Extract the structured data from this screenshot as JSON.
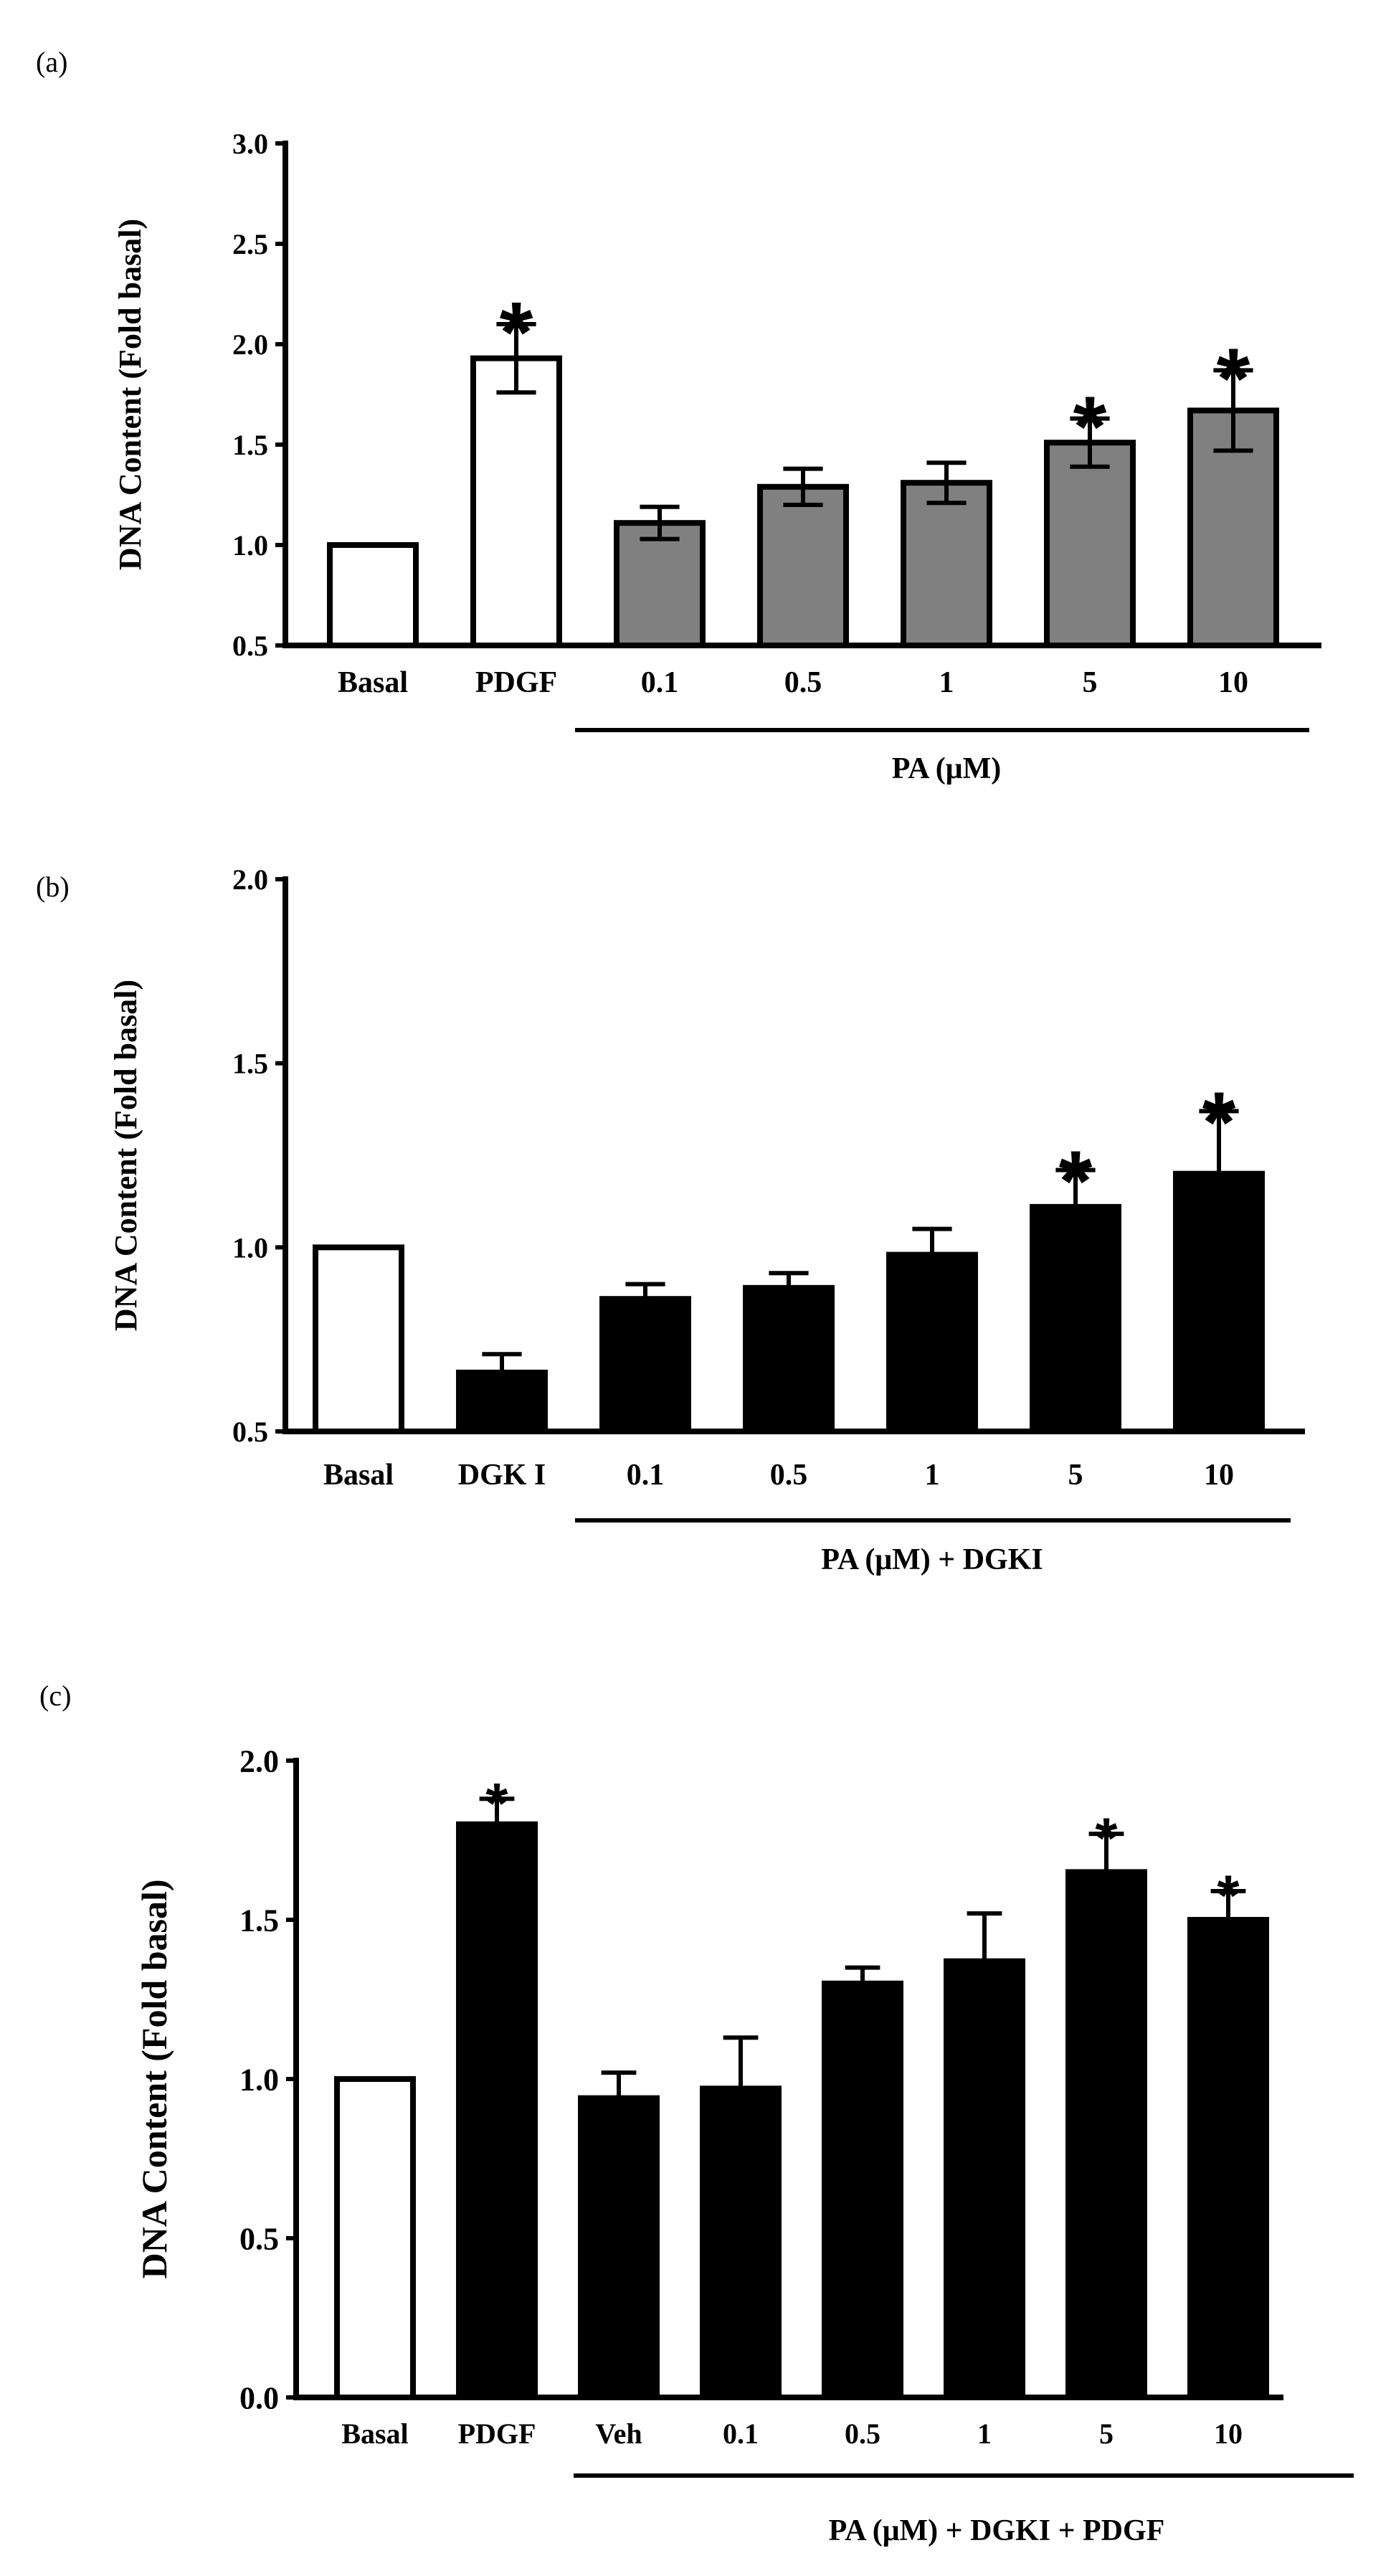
{
  "chart_data": [
    {
      "panel": "(a)",
      "type": "bar",
      "categories": [
        "Basal",
        "PDGF",
        "0.1",
        "0.5",
        "1",
        "5",
        "10"
      ],
      "values": [
        1.0,
        1.93,
        1.11,
        1.29,
        1.31,
        1.51,
        1.67
      ],
      "errors": [
        0,
        0.17,
        0.08,
        0.09,
        0.1,
        0.12,
        0.2
      ],
      "colors": [
        "#ffffff",
        "#ffffff",
        "#808080",
        "#808080",
        "#808080",
        "#808080",
        "#808080"
      ],
      "significant": [
        false,
        true,
        false,
        false,
        false,
        true,
        true
      ],
      "sig_marker": "*",
      "ylim": [
        0.5,
        3.0
      ],
      "yticks": [
        "0.5",
        "1.0",
        "1.5",
        "2.0",
        "2.5",
        "3.0"
      ],
      "ylabel": "DNA Content (Fold basal)",
      "group_label": "PA (μM)",
      "group_start_index": 2,
      "group_end_index": 6
    },
    {
      "panel": "(b)",
      "type": "bar",
      "categories": [
        "Basal",
        "DGK I",
        "0.1",
        "0.5",
        "1",
        "5",
        "10"
      ],
      "values": [
        1.0,
        0.66,
        0.86,
        0.89,
        0.98,
        1.11,
        1.2
      ],
      "errors": [
        0,
        0.05,
        0.04,
        0.04,
        0.07,
        0.1,
        0.17
      ],
      "colors": [
        "#ffffff",
        "#000000",
        "#000000",
        "#000000",
        "#000000",
        "#000000",
        "#000000"
      ],
      "significant": [
        false,
        false,
        false,
        false,
        false,
        true,
        true
      ],
      "sig_marker": "*",
      "ylim": [
        0.5,
        2.0
      ],
      "yticks": [
        "0.5",
        "1.0",
        "1.5",
        "2.0"
      ],
      "ylabel": "DNA Content (Fold basal)",
      "group_label": "PA (μM) + DGKI",
      "group_start_index": 2,
      "group_end_index": 6
    },
    {
      "panel": "(c)",
      "type": "bar",
      "categories": [
        "Basal",
        "PDGF",
        "Veh",
        "0.1",
        "0.5",
        "1",
        "5",
        "10"
      ],
      "values": [
        1.0,
        1.8,
        0.94,
        0.97,
        1.3,
        1.37,
        1.65,
        1.5
      ],
      "errors": [
        0,
        0.08,
        0.08,
        0.16,
        0.05,
        0.15,
        0.12,
        0.09
      ],
      "colors": [
        "#ffffff",
        "#000000",
        "#000000",
        "#000000",
        "#000000",
        "#000000",
        "#000000",
        "#000000"
      ],
      "significant": [
        false,
        true,
        false,
        false,
        false,
        false,
        true,
        true
      ],
      "sig_marker": "*",
      "ylim": [
        0.0,
        2.0
      ],
      "yticks": [
        "0.0",
        "0.5",
        "1.0",
        "1.5",
        "2.0"
      ],
      "ylabel": "DNA Content (Fold basal)",
      "group_label": "PA (μM)  + DGKI + PDGF",
      "group_start_index": 2,
      "group_end_index": 7
    }
  ]
}
